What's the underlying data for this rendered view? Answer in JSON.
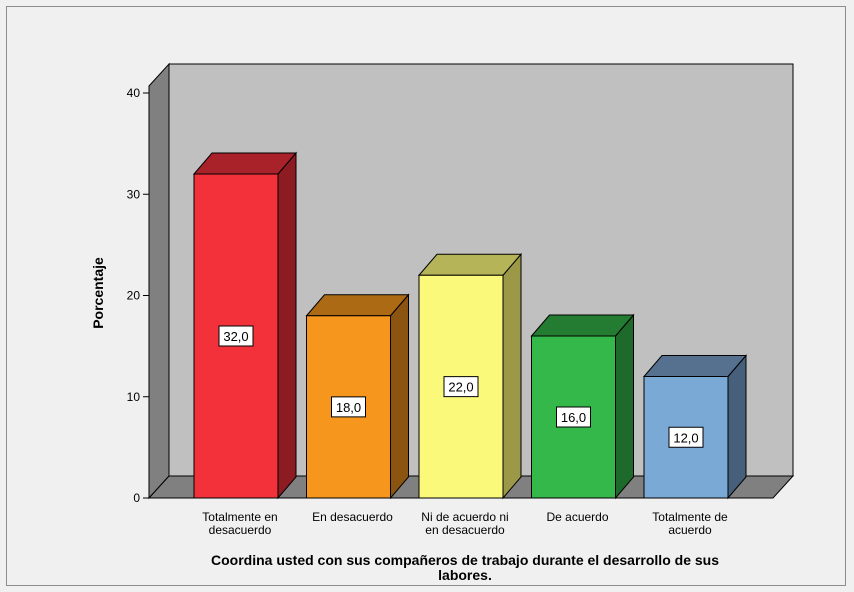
{
  "chart_data": {
    "type": "bar",
    "style": "3d",
    "categories": [
      [
        "Totalmente en",
        "desacuerdo"
      ],
      [
        "En desacuerdo"
      ],
      [
        "Ni de acuerdo ni",
        "en desacuerdo"
      ],
      [
        "De acuerdo"
      ],
      [
        "Totalmente de",
        "acuerdo"
      ]
    ],
    "values": [
      32.0,
      18.0,
      22.0,
      16.0,
      12.0
    ],
    "data_labels": [
      "32,0",
      "18,0",
      "22,0",
      "16,0",
      "12,0"
    ],
    "colors": [
      "#f2313a",
      "#f7961c",
      "#fbf97a",
      "#35b84a",
      "#7aa9d6"
    ],
    "side_colors": [
      "#8c1c22",
      "#8c5411",
      "#9b9948",
      "#1e6a2a",
      "#465f7a"
    ],
    "top_colors": [
      "#a9222a",
      "#ad6a15",
      "#b6b458",
      "#247b32",
      "#55718f"
    ],
    "ylabel": "Porcentaje",
    "xlabel": [
      "Coordina usted con sus compañeros de trabajo durante el desarrollo de sus",
      "labores."
    ],
    "ylim": [
      0,
      40
    ],
    "yticks": [
      "0",
      "10",
      "20",
      "30",
      "40"
    ],
    "grid": false,
    "wall_color": "#c0c0c0",
    "side_wall_color": "#808080",
    "floor_color": "#808080"
  }
}
